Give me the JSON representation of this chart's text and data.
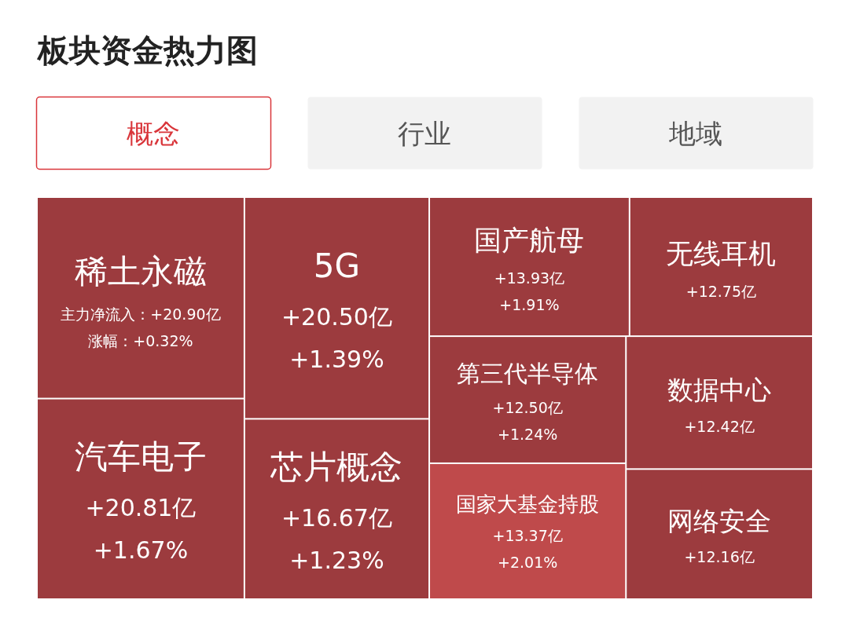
{
  "chart_data": {
    "type": "other",
    "title": "板块资金热力图",
    "annotations": [
      "概念",
      "行业",
      "地域"
    ],
    "categories": [
      "稀土永磁",
      "汽车电子",
      "5G",
      "芯片概念",
      "国产航母",
      "无线耳机",
      "第三代半导体",
      "国家大基金持股",
      "数据中心",
      "网络安全"
    ],
    "series": [
      {
        "colors": [
          "#9c3b3e",
          "#9c3b3e",
          "#9c3b3e",
          "#9c3b3e",
          "#9c3b3e",
          "#9c3b3e",
          "#9c3b3e",
          "#bf4a4b",
          "#9c3b3e",
          "#9c3b3e"
        ],
        "values": [
          20.9,
          20.81,
          20.5,
          16.67,
          13.93,
          12.75,
          12.5,
          13.37,
          12.42,
          12.16
        ],
        "value_labels": [
          "主力净流入：+20.90亿",
          "+20.81亿",
          "+20.50亿",
          "+16.67亿",
          "+13.93亿",
          "+12.75亿",
          "+12.50亿",
          "+13.37亿",
          "+12.42亿",
          "+12.16亿"
        ]
      },
      {
        "values": [
          0.32,
          1.67,
          1.39,
          1.23,
          1.91,
          null,
          1.24,
          2.01,
          null,
          null
        ],
        "value_labels": [
          "涨幅：+0.32%",
          "+1.67%",
          "+1.39%",
          "+1.23%",
          "+1.91%",
          null,
          "+1.24%",
          "+2.01%",
          null,
          null
        ]
      }
    ]
  }
}
